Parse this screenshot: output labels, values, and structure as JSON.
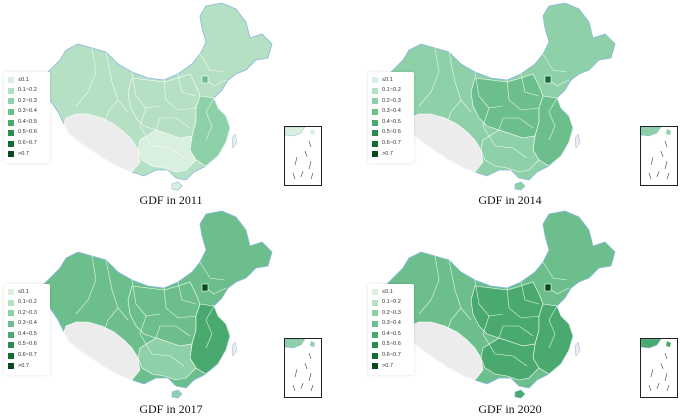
{
  "colors": {
    "palette": [
      "#d9efdf",
      "#b5e0c4",
      "#8ed0a7",
      "#6cbf8c",
      "#4aa96e",
      "#2e8b50",
      "#156b34",
      "#084a1f"
    ],
    "no_data": "#ececec",
    "coast": "#8ab8df"
  },
  "legend": {
    "items": [
      "≤0.1",
      "0.1~0.2",
      "0.2~0.3",
      "0.3~0.4",
      "0.4~0.5",
      "0.5~0.6",
      "0.6~0.7",
      ">0.7"
    ]
  },
  "panels": [
    {
      "caption": "GDF in 2011",
      "base_level": 1,
      "east_level": 2,
      "center_level": 1,
      "south_level": 0,
      "capital_level": 3
    },
    {
      "caption": "GDF in 2014",
      "base_level": 2,
      "east_level": 3,
      "center_level": 3,
      "south_level": 2,
      "capital_level": 6
    },
    {
      "caption": "GDF in 2017",
      "base_level": 3,
      "east_level": 4,
      "center_level": 3,
      "south_level": 2,
      "capital_level": 7
    },
    {
      "caption": "GDF in 2020",
      "base_level": 3,
      "east_level": 4,
      "center_level": 4,
      "south_level": 4,
      "capital_level": 7
    }
  ]
}
